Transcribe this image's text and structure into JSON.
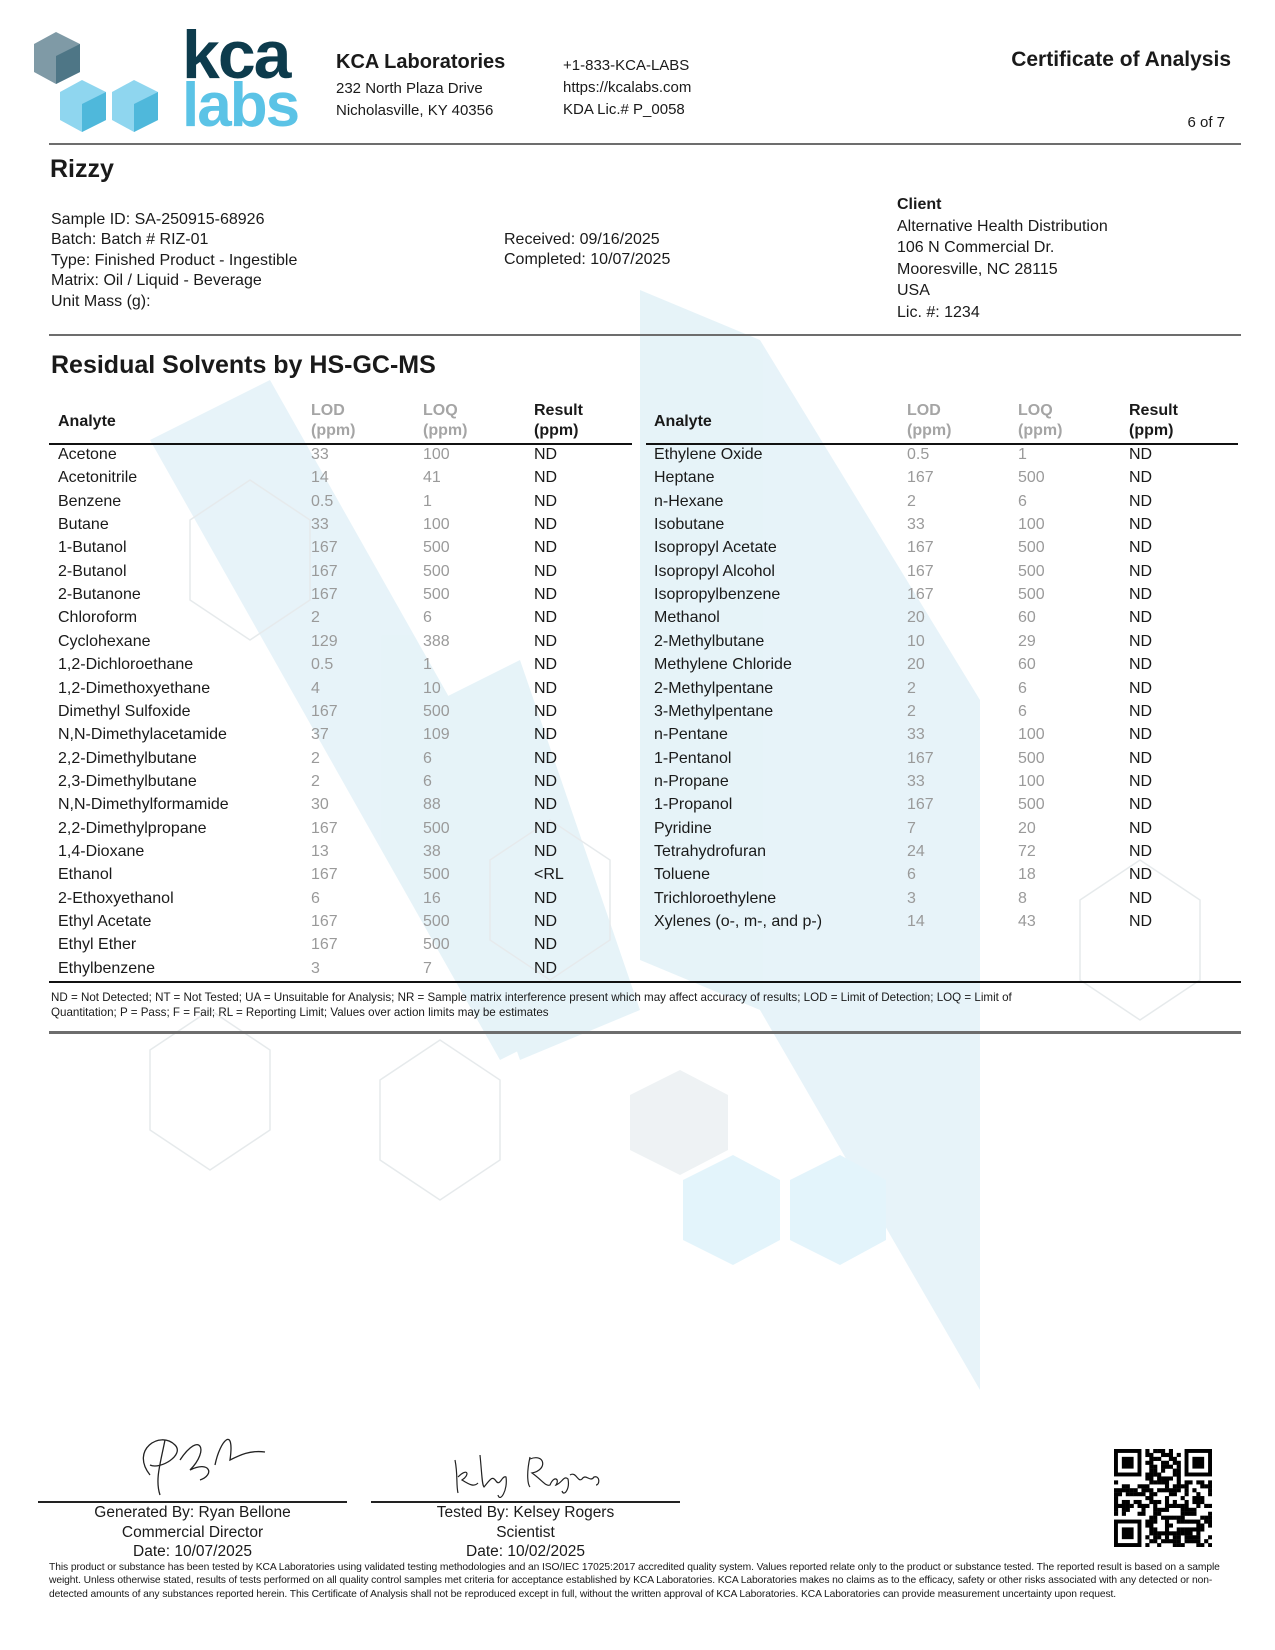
{
  "header": {
    "logo_text": {
      "top": "kca",
      "bottom": "labs"
    },
    "lab_name": "KCA Laboratories",
    "address_line1": "232 North Plaza Drive",
    "address_line2": "Nicholasville, KY 40356",
    "phone": "+1-833-KCA-LABS",
    "website": "https://kcalabs.com",
    "license": "KDA Lic.# P_0058",
    "doc_title": "Certificate of Analysis",
    "page": "6 of 7"
  },
  "sample": {
    "product": "Rizzy",
    "sample_id": "Sample ID: SA-250915-68926",
    "batch": "Batch: Batch # RIZ-01",
    "type": "Type: Finished Product - Ingestible",
    "matrix": "Matrix: Oil / Liquid - Beverage",
    "unit_mass": "Unit Mass (g):",
    "received": "Received: 09/16/2025",
    "completed": "Completed: 10/07/2025"
  },
  "client": {
    "label": "Client",
    "name": "Alternative Health Distribution",
    "street": "106 N Commercial Dr.",
    "city": "Mooresville, NC 28115",
    "country": "USA",
    "license": "Lic. #: 1234"
  },
  "section": {
    "title": "Residual Solvents by HS-GC-MS",
    "columns": {
      "analyte": "Analyte",
      "lod": "LOD",
      "loq": "LOQ",
      "result": "Result",
      "unit": "(ppm)"
    },
    "left_rows": [
      [
        "Acetone",
        "33",
        "100",
        "ND"
      ],
      [
        "Acetonitrile",
        "14",
        "41",
        "ND"
      ],
      [
        "Benzene",
        "0.5",
        "1",
        "ND"
      ],
      [
        "Butane",
        "33",
        "100",
        "ND"
      ],
      [
        "1-Butanol",
        "167",
        "500",
        "ND"
      ],
      [
        "2-Butanol",
        "167",
        "500",
        "ND"
      ],
      [
        "2-Butanone",
        "167",
        "500",
        "ND"
      ],
      [
        "Chloroform",
        "2",
        "6",
        "ND"
      ],
      [
        "Cyclohexane",
        "129",
        "388",
        "ND"
      ],
      [
        "1,2-Dichloroethane",
        "0.5",
        "1",
        "ND"
      ],
      [
        "1,2-Dimethoxyethane",
        "4",
        "10",
        "ND"
      ],
      [
        "Dimethyl Sulfoxide",
        "167",
        "500",
        "ND"
      ],
      [
        "N,N-Dimethylacetamide",
        "37",
        "109",
        "ND"
      ],
      [
        "2,2-Dimethylbutane",
        "2",
        "6",
        "ND"
      ],
      [
        "2,3-Dimethylbutane",
        "2",
        "6",
        "ND"
      ],
      [
        "N,N-Dimethylformamide",
        "30",
        "88",
        "ND"
      ],
      [
        "2,2-Dimethylpropane",
        "167",
        "500",
        "ND"
      ],
      [
        "1,4-Dioxane",
        "13",
        "38",
        "ND"
      ],
      [
        "Ethanol",
        "167",
        "500",
        "<RL"
      ],
      [
        "2-Ethoxyethanol",
        "6",
        "16",
        "ND"
      ],
      [
        "Ethyl Acetate",
        "167",
        "500",
        "ND"
      ],
      [
        "Ethyl Ether",
        "167",
        "500",
        "ND"
      ],
      [
        "Ethylbenzene",
        "3",
        "7",
        "ND"
      ]
    ],
    "right_rows": [
      [
        "Ethylene Oxide",
        "0.5",
        "1",
        "ND"
      ],
      [
        "Heptane",
        "167",
        "500",
        "ND"
      ],
      [
        "n-Hexane",
        "2",
        "6",
        "ND"
      ],
      [
        "Isobutane",
        "33",
        "100",
        "ND"
      ],
      [
        "Isopropyl Acetate",
        "167",
        "500",
        "ND"
      ],
      [
        "Isopropyl Alcohol",
        "167",
        "500",
        "ND"
      ],
      [
        "Isopropylbenzene",
        "167",
        "500",
        "ND"
      ],
      [
        "Methanol",
        "20",
        "60",
        "ND"
      ],
      [
        "2-Methylbutane",
        "10",
        "29",
        "ND"
      ],
      [
        "Methylene Chloride",
        "20",
        "60",
        "ND"
      ],
      [
        "2-Methylpentane",
        "2",
        "6",
        "ND"
      ],
      [
        "3-Methylpentane",
        "2",
        "6",
        "ND"
      ],
      [
        "n-Pentane",
        "33",
        "100",
        "ND"
      ],
      [
        "1-Pentanol",
        "167",
        "500",
        "ND"
      ],
      [
        "n-Propane",
        "33",
        "100",
        "ND"
      ],
      [
        "1-Propanol",
        "167",
        "500",
        "ND"
      ],
      [
        "Pyridine",
        "7",
        "20",
        "ND"
      ],
      [
        "Tetrahydrofuran",
        "24",
        "72",
        "ND"
      ],
      [
        "Toluene",
        "6",
        "18",
        "ND"
      ],
      [
        "Trichloroethylene",
        "3",
        "8",
        "ND"
      ],
      [
        "Xylenes (o-, m-, and p-)",
        "14",
        "43",
        "ND"
      ]
    ],
    "legend_line1": "ND = Not Detected; NT = Not Tested; UA = Unsuitable for Analysis; NR = Sample matrix interference present which may affect accuracy of results; LOD = Limit of Detection; LOQ = Limit of",
    "legend_line2": "Quantitation; P = Pass; F = Fail; RL = Reporting Limit; Values over action limits may be estimates"
  },
  "signatures": {
    "generated": {
      "line1": "Generated By: Ryan Bellone",
      "line2": "Commercial Director",
      "line3": "Date: 10/07/2025"
    },
    "tested": {
      "line1": "Tested By: Kelsey Rogers",
      "line2": "Scientist",
      "line3": "Date: 10/02/2025"
    }
  },
  "disclaimer": "This product or substance has been tested by KCA Laboratories using validated testing methodologies and an ISO/IEC 17025:2017 accredited quality system. Values reported relate only to the product or substance tested. The reported result is based on a sample weight. Unless otherwise stated, results of tests performed on all quality control samples met criteria for acceptance established by KCA Laboratories. KCA Laboratories makes no claims as to the efficacy, safety or other risks associated with any detected or non-detected amounts of any substances reported herein. This Certificate of Analysis shall not be reproduced except in full, without the written approval of KCA Laboratories. KCA Laboratories can provide measurement uncertainty upon request.",
  "colors": {
    "brand_dark": "#0d3b4c",
    "brand_light": "#5bc3e6",
    "rule": "#6d6d6d",
    "watermark": "#e3f1f7"
  }
}
